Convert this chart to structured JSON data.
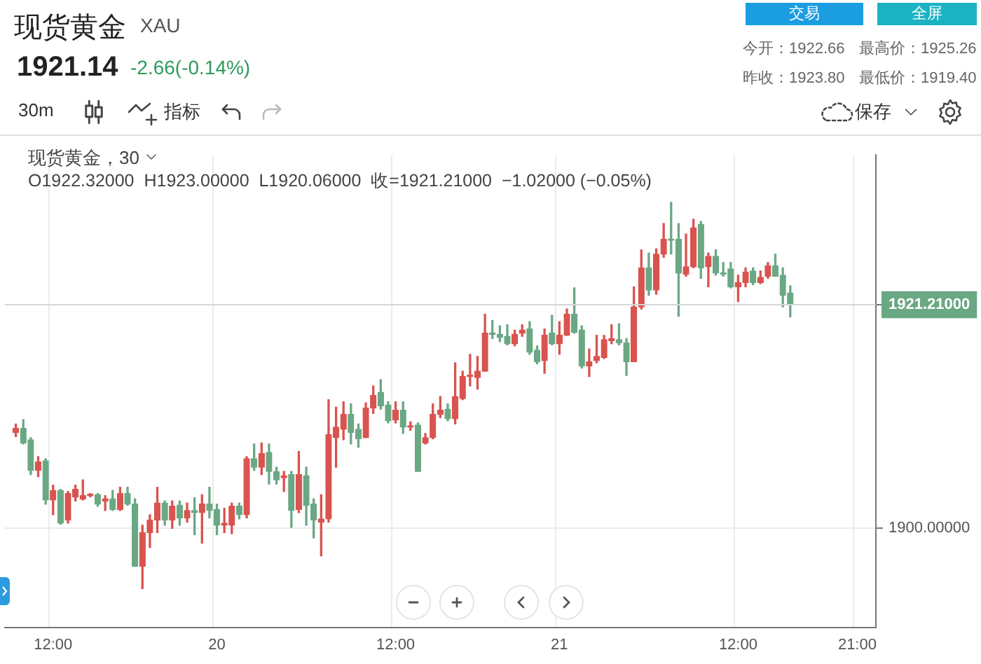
{
  "chart_data": {
    "type": "candlestick",
    "title": "现货黄金",
    "subtitle": "XAU",
    "categories": [
      null,
      null,
      null,
      null,
      null,
      null,
      "12:00",
      null,
      null,
      null,
      null,
      null,
      null,
      null,
      null,
      null,
      null,
      null,
      null,
      null,
      null,
      null,
      null,
      null,
      null,
      null,
      null,
      null,
      "20",
      null,
      null,
      null,
      null,
      null,
      null,
      null,
      null,
      null,
      null,
      null,
      null,
      null,
      null,
      null,
      null,
      null,
      null,
      null,
      null,
      null,
      null,
      null,
      "12:00",
      null,
      null,
      null,
      null,
      null,
      null,
      null,
      null,
      null,
      null,
      null,
      null,
      null,
      null,
      null,
      null,
      null,
      null,
      null,
      null,
      null,
      "21",
      null,
      null,
      null,
      null,
      null,
      null,
      null,
      null,
      null,
      null,
      null,
      null,
      null,
      null,
      null,
      null,
      null,
      null,
      null,
      null,
      null,
      null,
      null,
      "12:00",
      null,
      null,
      null,
      null,
      null,
      null,
      null,
      null,
      null,
      null,
      null,
      null,
      null,
      null,
      null,
      "21:00",
      null,
      null
    ],
    "ohlc": [
      null,
      [
        1909.1,
        1909.9,
        1908.7,
        1909.5
      ],
      [
        1909.5,
        1910.3,
        1908.0,
        1908.1
      ],
      [
        1908.4,
        1908.6,
        1905.1,
        1905.5
      ],
      [
        1905.5,
        1906.8,
        1904.9,
        1906.3
      ],
      [
        1906.4,
        1906.6,
        1902.3,
        1902.7
      ],
      [
        1902.7,
        1904.1,
        1901.3,
        1903.6
      ],
      [
        1903.6,
        1903.7,
        1900.4,
        1900.5
      ],
      [
        1900.8,
        1903.5,
        1900.5,
        1903.3
      ],
      [
        1903.0,
        1904.1,
        1902.6,
        1903.7
      ],
      [
        1902.8,
        1904.6,
        1902.7,
        1903.1
      ],
      [
        1903.1,
        1903.3,
        1903.0,
        1903.2
      ],
      [
        1903.2,
        1903.3,
        1902.1,
        1902.3
      ],
      [
        1902.6,
        1903.1,
        1901.7,
        1902.8
      ],
      [
        1902.8,
        1903.6,
        1901.7,
        1901.8
      ],
      [
        1901.8,
        1903.9,
        1901.7,
        1903.3
      ],
      [
        1903.3,
        1903.9,
        1902.2,
        1902.3
      ],
      [
        1902.3,
        1902.8,
        1896.4,
        1896.4
      ],
      [
        1896.4,
        1900.3,
        1894.3,
        1899.6
      ],
      [
        1899.6,
        1901.3,
        1898.2,
        1900.8
      ],
      [
        1900.8,
        1903.9,
        1899.6,
        1902.4
      ],
      [
        1902.4,
        1902.6,
        1900.3,
        1900.8
      ],
      [
        1900.8,
        1902.6,
        1900.0,
        1902.1
      ],
      [
        1902.2,
        1902.6,
        1900.3,
        1901.0
      ],
      [
        1901.0,
        1902.4,
        1900.6,
        1901.7
      ],
      [
        1901.7,
        1902.9,
        1899.4,
        1901.5
      ],
      [
        1901.5,
        1903.2,
        1898.6,
        1902.3
      ],
      [
        1902.3,
        1903.9,
        1901.0,
        1901.7
      ],
      [
        1901.8,
        1902.3,
        1899.4,
        1900.3
      ],
      [
        1900.3,
        1901.9,
        1899.6,
        1900.5
      ],
      [
        1900.3,
        1902.4,
        1899.5,
        1902.1
      ],
      [
        1902.1,
        1902.4,
        1900.9,
        1901.3
      ],
      [
        1901.3,
        1906.8,
        1901.0,
        1906.6
      ],
      [
        1906.6,
        1908.0,
        1905.5,
        1905.8
      ],
      [
        1905.8,
        1908.1,
        1905.1,
        1907.1
      ],
      [
        1907.2,
        1908.0,
        1904.2,
        1905.4
      ],
      [
        1905.4,
        1905.8,
        1904.2,
        1904.6
      ],
      [
        1904.8,
        1905.4,
        1903.5,
        1905.0
      ],
      [
        1905.1,
        1905.4,
        1900.1,
        1901.7
      ],
      [
        1901.8,
        1907.3,
        1901.5,
        1905.1
      ],
      [
        1905.0,
        1905.8,
        1900.3,
        1902.2
      ],
      [
        1902.3,
        1902.8,
        1899.1,
        1900.8
      ],
      [
        1900.6,
        1903.2,
        1897.4,
        1900.9
      ],
      [
        1900.9,
        1912.2,
        1900.6,
        1908.9
      ],
      [
        1908.6,
        1911.5,
        1905.8,
        1909.6
      ],
      [
        1909.4,
        1912.0,
        1908.4,
        1910.8
      ],
      [
        1910.8,
        1911.8,
        1908.0,
        1909.1
      ],
      [
        1909.4,
        1909.9,
        1907.7,
        1908.5
      ],
      [
        1908.6,
        1911.9,
        1908.6,
        1911.4
      ],
      [
        1911.4,
        1913.5,
        1910.9,
        1912.6
      ],
      [
        1912.9,
        1914.1,
        1911.3,
        1911.6
      ],
      [
        1911.7,
        1912.0,
        1910.0,
        1910.2
      ],
      [
        1910.3,
        1912.0,
        1910.0,
        1911.2
      ],
      [
        1911.2,
        1912.0,
        1909.0,
        1909.6
      ],
      [
        1909.6,
        1910.1,
        1909.3,
        1909.7
      ],
      [
        1909.8,
        1910.0,
        1905.4,
        1905.4
      ],
      [
        1908.1,
        1909.0,
        1908.0,
        1908.6
      ],
      [
        1908.6,
        1911.8,
        1908.5,
        1910.8
      ],
      [
        1910.8,
        1912.5,
        1910.5,
        1911.2
      ],
      [
        1911.3,
        1911.8,
        1910.2,
        1910.4
      ],
      [
        1910.4,
        1915.7,
        1909.9,
        1912.5
      ],
      [
        1912.3,
        1914.9,
        1912.2,
        1914.4
      ],
      [
        1914.4,
        1916.5,
        1913.5,
        1914.5
      ],
      [
        1914.3,
        1916.3,
        1913.2,
        1914.9
      ],
      [
        1914.9,
        1920.3,
        1914.9,
        1918.5
      ],
      [
        1918.5,
        1919.7,
        1918.0,
        1918.4
      ],
      [
        1918.4,
        1919.2,
        1917.7,
        1918.1
      ],
      [
        1918.2,
        1919.3,
        1917.4,
        1917.5
      ],
      [
        1917.5,
        1918.8,
        1917.3,
        1918.4
      ],
      [
        1918.5,
        1919.3,
        1918.2,
        1918.8
      ],
      [
        1918.9,
        1919.6,
        1916.5,
        1916.7
      ],
      [
        1916.9,
        1917.3,
        1915.6,
        1915.8
      ],
      [
        1915.9,
        1918.9,
        1914.7,
        1918.3
      ],
      [
        1918.5,
        1920.2,
        1917.4,
        1917.5
      ],
      [
        1917.5,
        1919.6,
        1916.5,
        1918.3
      ],
      [
        1918.3,
        1920.8,
        1918.3,
        1920.3
      ],
      [
        1920.3,
        1922.8,
        1918.5,
        1918.6
      ],
      [
        1918.8,
        1919.2,
        1915.2,
        1915.4
      ],
      [
        1915.4,
        1917.0,
        1914.4,
        1915.8
      ],
      [
        1915.9,
        1918.3,
        1915.7,
        1916.3
      ],
      [
        1916.2,
        1918.3,
        1916.1,
        1917.9
      ],
      [
        1917.8,
        1919.3,
        1917.5,
        1918.0
      ],
      [
        1917.9,
        1919.4,
        1917.4,
        1917.6
      ],
      [
        1917.6,
        1918.0,
        1914.5,
        1915.8
      ],
      [
        1915.8,
        1922.9,
        1915.8,
        1921.0
      ],
      [
        1921.0,
        1926.4,
        1920.8,
        1924.7
      ],
      [
        1924.7,
        1926.1,
        1922.1,
        1922.6
      ],
      [
        1922.6,
        1926.5,
        1922.2,
        1926.0
      ],
      [
        1926.0,
        1928.9,
        1925.7,
        1927.4
      ],
      [
        1927.4,
        1930.9,
        1926.0,
        1927.3
      ],
      [
        1927.4,
        1928.9,
        1920.1,
        1924.2
      ],
      [
        1924.1,
        1927.9,
        1923.9,
        1924.8
      ],
      [
        1924.8,
        1929.3,
        1924.7,
        1928.5
      ],
      [
        1928.8,
        1929.1,
        1923.7,
        1924.7
      ],
      [
        1924.8,
        1926.1,
        1922.9,
        1925.8
      ],
      [
        1925.8,
        1926.4,
        1924.0,
        1924.2
      ],
      [
        1924.2,
        1925.2,
        1923.9,
        1924.1
      ],
      [
        1924.6,
        1925.2,
        1922.8,
        1922.9
      ],
      [
        1922.9,
        1924.0,
        1921.5,
        1923.3
      ],
      [
        1923.3,
        1924.7,
        1922.9,
        1924.3
      ],
      [
        1924.4,
        1924.7,
        1923.1,
        1923.3
      ],
      [
        1923.3,
        1924.4,
        1923.2,
        1923.8
      ],
      [
        1923.9,
        1925.2,
        1923.7,
        1924.9
      ],
      [
        1924.9,
        1926.0,
        1923.9,
        1923.9
      ],
      [
        1924.0,
        1924.7,
        1921.0,
        1922.1
      ],
      [
        1922.32,
        1923.0,
        1920.06,
        1921.21
      ],
      null,
      null,
      null,
      null,
      null,
      null,
      null,
      null,
      null,
      null,
      null
    ],
    "colors": [
      null,
      "#d9534f",
      "#6aa884",
      "#6aa884",
      "#d9534f",
      "#6aa884",
      "#d9534f",
      "#6aa884",
      "#d9534f",
      "#d9534f",
      "#d9534f",
      "#d9534f",
      "#6aa884",
      "#d9534f",
      "#6aa884",
      "#d9534f",
      "#6aa884",
      "#6aa884",
      "#d9534f",
      "#d9534f",
      "#d9534f",
      "#6aa884",
      "#d9534f",
      "#6aa884",
      "#d9534f",
      "#6aa884",
      "#d9534f",
      "#6aa884",
      "#6aa884",
      "#d9534f",
      "#d9534f",
      "#6aa884",
      "#d9534f",
      "#6aa884",
      "#d9534f",
      "#6aa884",
      "#6aa884",
      "#d9534f",
      "#6aa884",
      "#d9534f",
      "#6aa884",
      "#6aa884",
      "#d9534f",
      "#d9534f",
      "#d9534f",
      "#d9534f",
      "#6aa884",
      "#6aa884",
      "#d9534f",
      "#d9534f",
      "#6aa884",
      "#6aa884",
      "#d9534f",
      "#6aa884",
      "#d9534f",
      "#6aa884",
      "#d9534f",
      "#d9534f",
      "#d9534f",
      "#6aa884",
      "#d9534f",
      "#d9534f",
      "#d9534f",
      "#d9534f",
      "#d9534f",
      "#6aa884",
      "#6aa884",
      "#6aa884",
      "#d9534f",
      "#d9534f",
      "#6aa884",
      "#6aa884",
      "#d9534f",
      "#6aa884",
      "#d9534f",
      "#d9534f",
      "#6aa884",
      "#6aa884",
      "#d9534f",
      "#d9534f",
      "#d9534f",
      "#d9534f",
      "#6aa884",
      "#6aa884",
      "#d9534f",
      "#d9534f",
      "#6aa884",
      "#d9534f",
      "#d9534f",
      "#6aa884",
      "#6aa884",
      "#d9534f",
      "#d9534f",
      "#6aa884",
      "#d9534f",
      "#6aa884",
      "#6aa884",
      "#6aa884",
      "#d9534f",
      "#d9534f",
      "#6aa884",
      "#d9534f",
      "#d9534f",
      "#6aa884",
      "#6aa884",
      "#6aa884",
      null,
      null,
      null,
      null,
      null,
      null,
      null,
      null,
      null,
      null,
      null
    ],
    "ylim": [
      1890.6,
      1935.4
    ],
    "yticks": [
      {
        "value": 1900,
        "label": "1900.00000"
      },
      {
        "value": 1921.21,
        "label": "1921.21000"
      }
    ],
    "ref_lines": [
      {
        "axis": "y",
        "value": 1921.21
      }
    ],
    "grid": true,
    "annotations": [
      "1921.14",
      "-2.66(-0.14%)",
      "交易",
      "全屏",
      "今开：1922.66",
      "最高价：1925.26",
      "昨收：1923.80",
      "最低价：1919.40",
      "30m",
      "指标",
      "保存",
      "现货黄金，30",
      "O1922.32000  H1923.00000  L1920.06000  收=1921.21000  −1.02000 (−0.05%)"
    ]
  }
}
